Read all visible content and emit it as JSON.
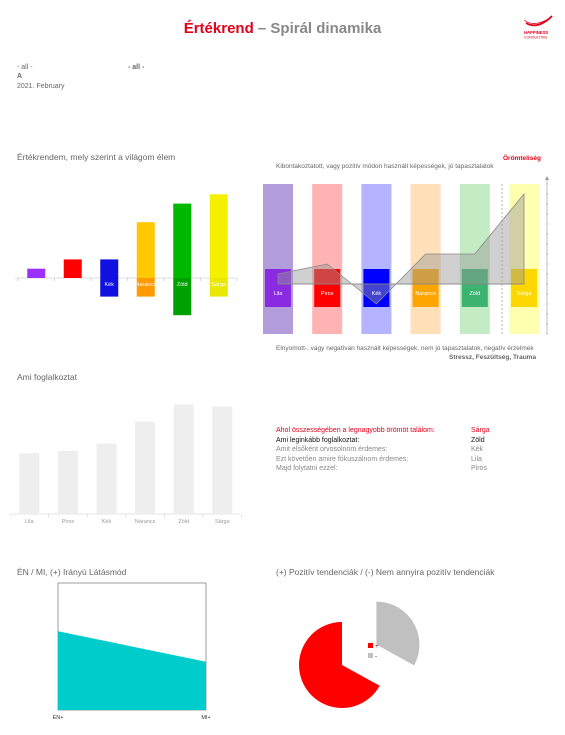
{
  "header": {
    "title_accent": "Értékrend",
    "title_rest": " – Spirál dinamika",
    "logo_text_1": "HAPPINESS",
    "logo_text_2": "CONSULTING"
  },
  "meta": {
    "field_a": "- all -",
    "field_b": "- all -",
    "letter": "A",
    "date": "2021. February"
  },
  "sections": {
    "values": "Értékrendem, mely szerint a világom élem",
    "occupation": "Ami foglalkoztat",
    "direction": "ÉN / MI, (+) Irányú Látásmód",
    "tendencies": "(+) Pozitív tendenciák / (-) Nem annyira pozitív tendenciák"
  },
  "spiral": {
    "top_label": "Örömteliség",
    "top_note": "Kibontakoztatott, vagy pozitív módon használt képességek, jó tapasztalatok",
    "bottom_note": "Elnyomott-, vagy negatívan használt képességek, nem jó tapasztalatok, negatív érzelmek",
    "bottom_label": "Stressz, Feszültség, Trauma"
  },
  "info": {
    "rows": [
      {
        "label": "Ahol összességében a legnagyobb örömöt találom:",
        "value": "Sárga",
        "color": "#e2001a"
      },
      {
        "label": "Ami leginkább foglalkoztat:",
        "value": "Zöld",
        "color": "#111111"
      },
      {
        "label": "Amit elsőként orvosolnom érdemes:",
        "value": "Kék",
        "color": "#888888"
      },
      {
        "label": "Ezt követően amire fókuszálnom érdemes:",
        "value": "Lila",
        "color": "#888888"
      },
      {
        "label": "Majd folytatni ezzel:",
        "value": "Piros",
        "color": "#888888"
      }
    ]
  },
  "pie_legend": {
    "plus": "+",
    "minus": "-"
  },
  "chart_data": [
    {
      "type": "bar",
      "name": "values",
      "categories": [
        "Lila",
        "Piros",
        "Kék",
        "Narancs",
        "Zöld",
        "Sárga"
      ],
      "labels_shown": [
        "",
        "",
        "Kék",
        "Narancs",
        "Zöld",
        "Sárga"
      ],
      "positive": [
        1,
        2,
        2,
        6,
        8,
        9
      ],
      "negative": [
        0,
        0,
        -2,
        -2,
        -4,
        -2
      ],
      "colors": [
        "#9b30ff",
        "#ff0000",
        "#1010e0",
        "#ffc800",
        "#00b800",
        "#f5f000"
      ],
      "neg_colors": [
        "#9b30ff",
        "#ff0000",
        "#1010e0",
        "#ff9a00",
        "#00a000",
        "#e8e800"
      ]
    },
    {
      "type": "bar",
      "name": "spiral",
      "categories": [
        "Lila",
        "Piros",
        "Kék",
        "Narancs",
        "Zöld",
        "Sárga"
      ],
      "values": [
        1,
        2,
        -2,
        3,
        3,
        9
      ],
      "ylim": [
        -5,
        10
      ],
      "column_colors": [
        "#b39ddb",
        "#ffb3b3",
        "#b3b3ff",
        "#ffe0b8",
        "#c4ecc4",
        "#ffffb0"
      ],
      "box_colors": [
        "#8a2be2",
        "#ff0000",
        "#0000ff",
        "#ffa500",
        "#3cb371",
        "#ffd700"
      ]
    },
    {
      "type": "bar",
      "name": "occupation",
      "categories": [
        "Lila",
        "Piros",
        "Kék",
        "Narancs",
        "Zöld",
        "Sárga"
      ],
      "values": [
        5.6,
        5.8,
        6.5,
        8.5,
        10.1,
        9.9
      ],
      "ylim": [
        0,
        10.5
      ],
      "color": "#eeeeee"
    },
    {
      "type": "area",
      "name": "direction",
      "categories": [
        "ÉN+",
        "MI+"
      ],
      "values": [
        62,
        38
      ],
      "ylim": [
        0,
        100
      ],
      "color": "#00cccc"
    },
    {
      "type": "pie",
      "name": "tendencies",
      "categories": [
        "+",
        "-"
      ],
      "values": [
        67,
        33
      ],
      "colors": [
        "#ff0000",
        "#c0c0c0"
      ]
    }
  ]
}
